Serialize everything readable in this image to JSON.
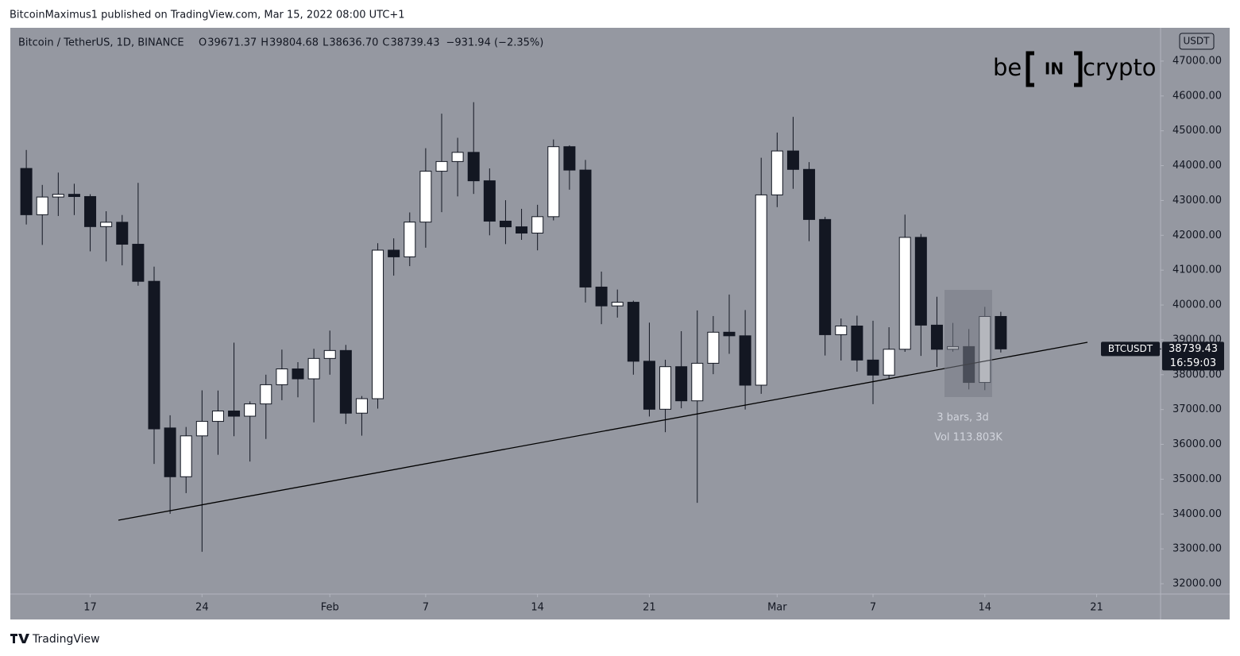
{
  "header": {
    "publisher_line": "BitcoinMaximus1 published on TradingView.com, Mar 15, 2022 08:00 UTC+1"
  },
  "footer": {
    "brand": "TradingView"
  },
  "logo": {
    "prefix": "be",
    "mark": "IN",
    "suffix": "crypto"
  },
  "chart_data": {
    "type": "candlestick",
    "title": "Bitcoin / TetherUS, 1D, BINANCE",
    "legend": [
      {
        "label": "O",
        "value": "39671.37"
      },
      {
        "label": "H",
        "value": "39804.68"
      },
      {
        "label": "L",
        "value": "38636.70"
      },
      {
        "label": "C",
        "value": "38739.43"
      }
    ],
    "change": "−931.94 (−2.35%)",
    "currency": "USDT",
    "price_label": {
      "symbol": "BTCUSDT",
      "price": "38739.43",
      "countdown": "16:59:03"
    },
    "annotations": [
      "3 bars, 3d",
      "Vol 113.803K"
    ],
    "up_color": "#ffffff",
    "down_color": "#131722",
    "background": "#9598a1",
    "x": [
      "01-13",
      "01-14",
      "01-15",
      "01-16",
      "01-17",
      "01-18",
      "01-19",
      "01-20",
      "01-21",
      "01-22",
      "01-23",
      "01-24",
      "01-25",
      "01-26",
      "01-27",
      "01-28",
      "01-29",
      "01-30",
      "01-31",
      "02-01",
      "02-02",
      "02-03",
      "02-04",
      "02-05",
      "02-06",
      "02-07",
      "02-08",
      "02-09",
      "02-10",
      "02-11",
      "02-12",
      "02-13",
      "02-14",
      "02-15",
      "02-16",
      "02-17",
      "02-18",
      "02-19",
      "02-20",
      "02-21",
      "02-22",
      "02-23",
      "02-24",
      "02-25",
      "02-26",
      "02-27",
      "02-28",
      "03-01",
      "03-02",
      "03-03",
      "03-04",
      "03-05",
      "03-06",
      "03-07",
      "03-08",
      "03-09",
      "03-10",
      "03-11",
      "03-12",
      "03-13",
      "03-14",
      "03-15"
    ],
    "open": [
      43919,
      42591,
      43099,
      43177,
      43113,
      42250,
      42375,
      41744,
      40680,
      36471,
      35071,
      36244,
      36660,
      36958,
      36809,
      37161,
      37712,
      38166,
      37881,
      38466,
      38694,
      36896,
      37311,
      41574,
      41382,
      42380,
      43840,
      44118,
      44381,
      43565,
      42407,
      42244,
      42064,
      42535,
      44544,
      43873,
      40515,
      39974,
      40079,
      38386,
      37008,
      38230,
      37250,
      38328,
      39219,
      39116,
      37699,
      43160,
      44421,
      43892,
      42454,
      39148,
      39397,
      38420,
      37988,
      38730,
      41941,
      39422,
      38729,
      38807,
      37777,
      39671.37
    ],
    "high": [
      44450,
      43447,
      43800,
      43480,
      43180,
      42691,
      42583,
      43505,
      41100,
      36835,
      36499,
      37550,
      37545,
      38919,
      37234,
      38000,
      38720,
      38359,
      38744,
      39265,
      38855,
      37387,
      41772,
      41913,
      42657,
      44500,
      45492,
      44799,
      45821,
      43920,
      43008,
      42760,
      42876,
      44751,
      44583,
      44164,
      40959,
      40444,
      40125,
      39494,
      38429,
      39249,
      39843,
      39683,
      40300,
      39855,
      44225,
      44949,
      45400,
      44101,
      42527,
      39613,
      39693,
      39547,
      39362,
      42594,
      42039,
      40236,
      39486,
      39310,
      39947,
      39804.68
    ],
    "low": [
      42311,
      41725,
      42555,
      42581,
      41540,
      41250,
      41138,
      40553,
      35440,
      34008,
      34601,
      32917,
      35701,
      36234,
      35507,
      36155,
      37268,
      37351,
      36632,
      38000,
      36586,
      36250,
      37026,
      40843,
      41116,
      41645,
      42666,
      43117,
      43188,
      42000,
      41748,
      41870,
      41569,
      42428,
      43310,
      40073,
      39450,
      39639,
      38000,
      36800,
      36350,
      37036,
      34322,
      38015,
      38600,
      37000,
      37450,
      42809,
      43335,
      41832,
      38550,
      38407,
      38088,
      37155,
      37867,
      38656,
      38539,
      38223,
      38660,
      37578,
      37555,
      38636.7
    ],
    "close": [
      42591,
      43099,
      43177,
      43113,
      42250,
      42375,
      41744,
      40680,
      36445,
      35071,
      36244,
      36660,
      36958,
      36809,
      37161,
      37712,
      38166,
      37881,
      38466,
      38694,
      36896,
      37311,
      41574,
      41382,
      42380,
      43840,
      44118,
      44381,
      43565,
      42407,
      42244,
      42064,
      42535,
      44544,
      43873,
      40515,
      39974,
      40079,
      38386,
      37008,
      38230,
      37250,
      38328,
      39219,
      39116,
      37699,
      43160,
      44421,
      43892,
      42454,
      39148,
      39397,
      38420,
      37988,
      38730,
      41941,
      39422,
      38729,
      38807,
      37777,
      39671,
      38739.43
    ],
    "xlim": [
      "01-12",
      "03-25"
    ],
    "xticks": [
      {
        "value": "01-17",
        "label": "17"
      },
      {
        "value": "01-24",
        "label": "24"
      },
      {
        "value": "02-01",
        "label": "Feb"
      },
      {
        "value": "02-07",
        "label": "7"
      },
      {
        "value": "02-14",
        "label": "14"
      },
      {
        "value": "02-21",
        "label": "21"
      },
      {
        "value": "03-01",
        "label": "Mar"
      },
      {
        "value": "03-07",
        "label": "7"
      },
      {
        "value": "03-14",
        "label": "14"
      },
      {
        "value": "03-21",
        "label": "21"
      }
    ],
    "ylim": [
      31704,
      47956
    ],
    "yticks": [
      {
        "value": 32000,
        "label": "32000.00"
      },
      {
        "value": 33000,
        "label": "33000.00"
      },
      {
        "value": 34000,
        "label": "34000.00"
      },
      {
        "value": 35000,
        "label": "35000.00"
      },
      {
        "value": 36000,
        "label": "36000.00"
      },
      {
        "value": 37000,
        "label": "37000.00"
      },
      {
        "value": 38000,
        "label": "38000.00"
      },
      {
        "value": 39000,
        "label": "39000.00"
      },
      {
        "value": 40000,
        "label": "40000.00"
      },
      {
        "value": 41000,
        "label": "41000.00"
      },
      {
        "value": 42000,
        "label": "42000.00"
      },
      {
        "value": 43000,
        "label": "43000.00"
      },
      {
        "value": 44000,
        "label": "44000.00"
      },
      {
        "value": 45000,
        "label": "45000.00"
      },
      {
        "value": 46000,
        "label": "46000.00"
      },
      {
        "value": 47000,
        "label": "47000.00"
      }
    ],
    "grid": false
  }
}
